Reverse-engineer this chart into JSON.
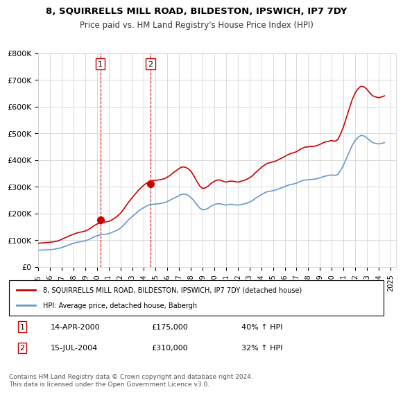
{
  "title": "8, SQUIRRELLS MILL ROAD, BILDESTON, IPSWICH, IP7 7DY",
  "subtitle": "Price paid vs. HM Land Registry's House Price Index (HPI)",
  "ylabel_ticks": [
    "£0",
    "£100K",
    "£200K",
    "£300K",
    "£400K",
    "£500K",
    "£600K",
    "£700K",
    "£800K"
  ],
  "ytick_values": [
    0,
    100000,
    200000,
    300000,
    400000,
    500000,
    600000,
    700000,
    800000
  ],
  "ylim": [
    0,
    800000
  ],
  "xlim_start": 1995.0,
  "xlim_end": 2025.5,
  "red_line_color": "#cc0000",
  "blue_line_color": "#6699cc",
  "sale1_date": 2000.28,
  "sale1_price": 175000,
  "sale1_label": "1",
  "sale2_date": 2004.54,
  "sale2_price": 310000,
  "sale2_label": "2",
  "legend_line1": "8, SQUIRRELLS MILL ROAD, BILDESTON, IPSWICH, IP7 7DY (detached house)",
  "legend_line2": "HPI: Average price, detached house, Babergh",
  "table_row1": [
    "1",
    "14-APR-2000",
    "£175,000",
    "40% ↑ HPI"
  ],
  "table_row2": [
    "2",
    "15-JUL-2004",
    "£310,000",
    "32% ↑ HPI"
  ],
  "footnote": "Contains HM Land Registry data © Crown copyright and database right 2024.\nThis data is licensed under the Open Government Licence v3.0.",
  "hpi_data": {
    "dates": [
      1995.0,
      1995.25,
      1995.5,
      1995.75,
      1996.0,
      1996.25,
      1996.5,
      1996.75,
      1997.0,
      1997.25,
      1997.5,
      1997.75,
      1998.0,
      1998.25,
      1998.5,
      1998.75,
      1999.0,
      1999.25,
      1999.5,
      1999.75,
      2000.0,
      2000.25,
      2000.5,
      2000.75,
      2001.0,
      2001.25,
      2001.5,
      2001.75,
      2002.0,
      2002.25,
      2002.5,
      2002.75,
      2003.0,
      2003.25,
      2003.5,
      2003.75,
      2004.0,
      2004.25,
      2004.5,
      2004.75,
      2005.0,
      2005.25,
      2005.5,
      2005.75,
      2006.0,
      2006.25,
      2006.5,
      2006.75,
      2007.0,
      2007.25,
      2007.5,
      2007.75,
      2008.0,
      2008.25,
      2008.5,
      2008.75,
      2009.0,
      2009.25,
      2009.5,
      2009.75,
      2010.0,
      2010.25,
      2010.5,
      2010.75,
      2011.0,
      2011.25,
      2011.5,
      2011.75,
      2012.0,
      2012.25,
      2012.5,
      2012.75,
      2013.0,
      2013.25,
      2013.5,
      2013.75,
      2014.0,
      2014.25,
      2014.5,
      2014.75,
      2015.0,
      2015.25,
      2015.5,
      2015.75,
      2016.0,
      2016.25,
      2016.5,
      2016.75,
      2017.0,
      2017.25,
      2017.5,
      2017.75,
      2018.0,
      2018.25,
      2018.5,
      2018.75,
      2019.0,
      2019.25,
      2019.5,
      2019.75,
      2020.0,
      2020.25,
      2020.5,
      2020.75,
      2021.0,
      2021.25,
      2021.5,
      2021.75,
      2022.0,
      2022.25,
      2022.5,
      2022.75,
      2023.0,
      2023.25,
      2023.5,
      2023.75,
      2024.0,
      2024.25,
      2024.5
    ],
    "values": [
      62000,
      62500,
      63000,
      63500,
      64000,
      65000,
      67000,
      69000,
      72000,
      76000,
      80000,
      84000,
      88000,
      91000,
      93000,
      95000,
      97000,
      101000,
      106000,
      112000,
      116000,
      119000,
      121000,
      122000,
      124000,
      128000,
      133000,
      138000,
      145000,
      155000,
      167000,
      178000,
      188000,
      197000,
      207000,
      215000,
      222000,
      228000,
      232000,
      234000,
      235000,
      236000,
      238000,
      240000,
      244000,
      250000,
      256000,
      261000,
      267000,
      272000,
      272000,
      268000,
      260000,
      248000,
      233000,
      220000,
      213000,
      215000,
      220000,
      228000,
      233000,
      236000,
      236000,
      233000,
      231000,
      233000,
      234000,
      232000,
      231000,
      233000,
      235000,
      238000,
      242000,
      248000,
      256000,
      263000,
      270000,
      276000,
      281000,
      283000,
      285000,
      288000,
      292000,
      296000,
      300000,
      305000,
      308000,
      310000,
      313000,
      318000,
      323000,
      325000,
      326000,
      327000,
      328000,
      330000,
      333000,
      337000,
      340000,
      342000,
      344000,
      342000,
      345000,
      360000,
      380000,
      405000,
      430000,
      455000,
      473000,
      485000,
      492000,
      490000,
      483000,
      473000,
      465000,
      462000,
      460000,
      462000,
      465000
    ]
  },
  "red_data": {
    "dates": [
      1995.0,
      1995.25,
      1995.5,
      1995.75,
      1996.0,
      1996.25,
      1996.5,
      1996.75,
      1997.0,
      1997.25,
      1997.5,
      1997.75,
      1998.0,
      1998.25,
      1998.5,
      1998.75,
      1999.0,
      1999.25,
      1999.5,
      1999.75,
      2000.0,
      2000.25,
      2000.5,
      2000.75,
      2001.0,
      2001.25,
      2001.5,
      2001.75,
      2002.0,
      2002.25,
      2002.5,
      2002.75,
      2003.0,
      2003.25,
      2003.5,
      2003.75,
      2004.0,
      2004.25,
      2004.5,
      2004.75,
      2005.0,
      2005.25,
      2005.5,
      2005.75,
      2006.0,
      2006.25,
      2006.5,
      2006.75,
      2007.0,
      2007.25,
      2007.5,
      2007.75,
      2008.0,
      2008.25,
      2008.5,
      2008.75,
      2009.0,
      2009.25,
      2009.5,
      2009.75,
      2010.0,
      2010.25,
      2010.5,
      2010.75,
      2011.0,
      2011.25,
      2011.5,
      2011.75,
      2012.0,
      2012.25,
      2012.5,
      2012.75,
      2013.0,
      2013.25,
      2013.5,
      2013.75,
      2014.0,
      2014.25,
      2014.5,
      2014.75,
      2015.0,
      2015.25,
      2015.5,
      2015.75,
      2016.0,
      2016.25,
      2016.5,
      2016.75,
      2017.0,
      2017.25,
      2017.5,
      2017.75,
      2018.0,
      2018.25,
      2018.5,
      2018.75,
      2019.0,
      2019.25,
      2019.5,
      2019.75,
      2020.0,
      2020.25,
      2020.5,
      2020.75,
      2021.0,
      2021.25,
      2021.5,
      2021.75,
      2022.0,
      2022.25,
      2022.5,
      2022.75,
      2023.0,
      2023.25,
      2023.5,
      2023.75,
      2024.0,
      2024.25,
      2024.5
    ],
    "values": [
      88000,
      89000,
      90000,
      91000,
      92000,
      93000,
      95000,
      98000,
      103000,
      108000,
      113000,
      118000,
      122000,
      126000,
      129000,
      131000,
      134000,
      139000,
      146000,
      154000,
      160000,
      164000,
      166000,
      168000,
      170000,
      175000,
      182000,
      190000,
      200000,
      214000,
      230000,
      245000,
      259000,
      272000,
      285000,
      296000,
      306000,
      314000,
      320000,
      323000,
      324000,
      325000,
      327000,
      330000,
      336000,
      343000,
      352000,
      360000,
      368000,
      374000,
      373000,
      368000,
      358000,
      341000,
      321000,
      303000,
      293000,
      296000,
      303000,
      313000,
      320000,
      325000,
      325000,
      320000,
      317000,
      320000,
      321000,
      319000,
      317000,
      320000,
      323000,
      327000,
      333000,
      341000,
      352000,
      362000,
      372000,
      380000,
      387000,
      390000,
      393000,
      396000,
      402000,
      407000,
      413000,
      419000,
      424000,
      427000,
      431000,
      438000,
      444000,
      448000,
      449000,
      451000,
      451000,
      454000,
      458000,
      464000,
      468000,
      470000,
      473000,
      470000,
      475000,
      496000,
      524000,
      558000,
      592000,
      626000,
      651000,
      667000,
      676000,
      674000,
      665000,
      651000,
      640000,
      636000,
      633000,
      636000,
      640000
    ]
  }
}
